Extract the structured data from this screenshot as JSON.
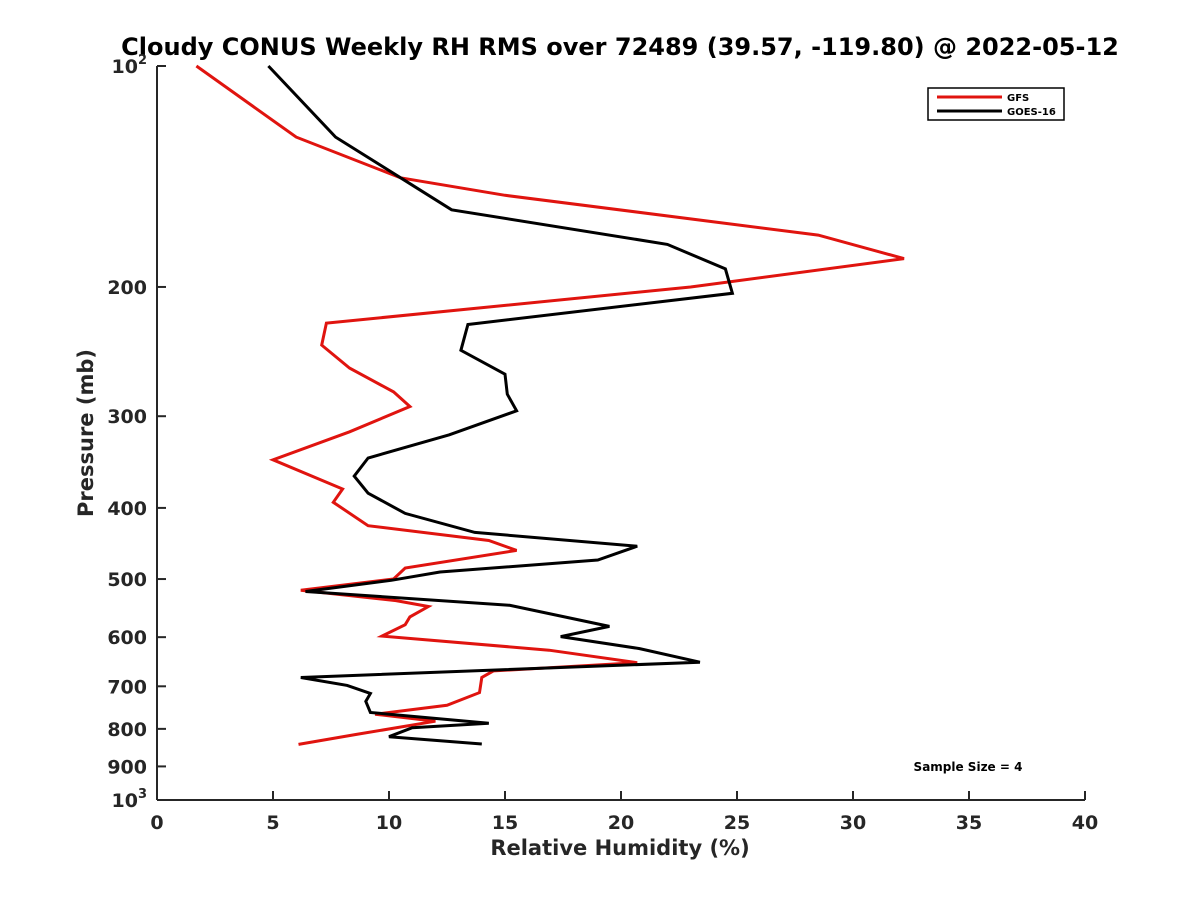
{
  "chart_data": {
    "type": "line",
    "title": "Cloudy CONUS Weekly RH RMS over 72489 (39.57, -119.80) @ 2022-05-12",
    "xlabel": "Relative Humidity (%)",
    "ylabel": "Pressure (mb)",
    "xlim": [
      0,
      40
    ],
    "ylim": [
      100,
      1000
    ],
    "y_scale": "log",
    "y_reversed": true,
    "x_ticks": [
      0,
      5,
      10,
      15,
      20,
      25,
      30,
      35,
      40
    ],
    "x_tick_labels": [
      "0",
      "5",
      "10",
      "15",
      "20",
      "25",
      "30",
      "35",
      "40"
    ],
    "y_ticks": [
      {
        "value": 100,
        "base": "10",
        "exp": "2"
      },
      {
        "value": 200,
        "base": "200",
        "exp": ""
      },
      {
        "value": 300,
        "base": "300",
        "exp": ""
      },
      {
        "value": 400,
        "base": "400",
        "exp": ""
      },
      {
        "value": 500,
        "base": "500",
        "exp": ""
      },
      {
        "value": 600,
        "base": "600",
        "exp": ""
      },
      {
        "value": 700,
        "base": "700",
        "exp": ""
      },
      {
        "value": 800,
        "base": "800",
        "exp": ""
      },
      {
        "value": 900,
        "base": "900",
        "exp": ""
      },
      {
        "value": 1000,
        "base": "10",
        "exp": "3"
      }
    ],
    "grid": false,
    "legend_position": "top-right",
    "annotation": "Sample Size = 4",
    "series": [
      {
        "name": "GFS",
        "color": "#e0140f",
        "points": [
          [
            1.7,
            100
          ],
          [
            6.0,
            125
          ],
          [
            10.5,
            142
          ],
          [
            15.0,
            150
          ],
          [
            28.5,
            170
          ],
          [
            32.2,
            183
          ],
          [
            23.0,
            200
          ],
          [
            7.3,
            224
          ],
          [
            7.1,
            240
          ],
          [
            8.3,
            258
          ],
          [
            10.2,
            278
          ],
          [
            10.9,
            291
          ],
          [
            8.3,
            315
          ],
          [
            5.0,
            344
          ],
          [
            8.0,
            377
          ],
          [
            7.6,
            393
          ],
          [
            9.1,
            423
          ],
          [
            14.3,
            443
          ],
          [
            15.5,
            457
          ],
          [
            10.7,
            483
          ],
          [
            10.2,
            500
          ],
          [
            6.2,
            518
          ],
          [
            10.3,
            535
          ],
          [
            11.7,
            545
          ],
          [
            10.9,
            563
          ],
          [
            10.7,
            577
          ],
          [
            9.7,
            598
          ],
          [
            16.9,
            625
          ],
          [
            20.7,
            650
          ],
          [
            14.5,
            667
          ],
          [
            14.0,
            681
          ],
          [
            13.9,
            714
          ],
          [
            12.5,
            743
          ],
          [
            9.4,
            764
          ],
          [
            12.0,
            781
          ],
          [
            8.6,
            814
          ],
          [
            6.1,
            840
          ]
        ]
      },
      {
        "name": "GOES-16",
        "color": "#000000",
        "points": [
          [
            4.8,
            100
          ],
          [
            7.7,
            125
          ],
          [
            10.5,
            142
          ],
          [
            12.7,
            157
          ],
          [
            22.0,
            175
          ],
          [
            24.5,
            189
          ],
          [
            24.8,
            204
          ],
          [
            13.4,
            225
          ],
          [
            13.1,
            244
          ],
          [
            15.0,
            263
          ],
          [
            15.1,
            280
          ],
          [
            15.5,
            295
          ],
          [
            12.6,
            318
          ],
          [
            9.1,
            342
          ],
          [
            8.5,
            362
          ],
          [
            9.1,
            382
          ],
          [
            10.7,
            407
          ],
          [
            13.7,
            432
          ],
          [
            20.7,
            451
          ],
          [
            19.0,
            471
          ],
          [
            12.2,
            489
          ],
          [
            10.1,
            502
          ],
          [
            6.4,
            520
          ],
          [
            15.2,
            543
          ],
          [
            19.5,
            580
          ],
          [
            17.4,
            599
          ],
          [
            20.8,
            622
          ],
          [
            23.4,
            649
          ],
          [
            6.2,
            681
          ],
          [
            8.2,
            698
          ],
          [
            9.2,
            716
          ],
          [
            9.0,
            734
          ],
          [
            9.2,
            760
          ],
          [
            14.3,
            786
          ],
          [
            11.0,
            797
          ],
          [
            10.0,
            820
          ],
          [
            14.0,
            839
          ]
        ]
      }
    ]
  }
}
